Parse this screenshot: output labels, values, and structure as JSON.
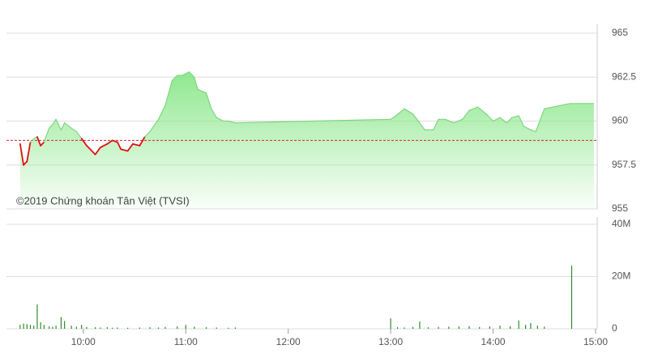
{
  "chart_data": [
    {
      "type": "line",
      "annotation": "©2019 Chứng khoán Tân Việt (TVSI)",
      "x": [
        "9:23",
        "9:25",
        "9:27",
        "9:29",
        "9:31",
        "9:33",
        "9:35",
        "9:37",
        "9:40",
        "9:42",
        "9:44",
        "9:47",
        "9:49",
        "9:53",
        "9:56",
        "9:59",
        "10:02",
        "10:07",
        "10:10",
        "10:14",
        "10:17",
        "10:20",
        "10:22",
        "10:26",
        "10:29",
        "10:33",
        "10:36",
        "10:39",
        "10:44",
        "10:48",
        "10:52",
        "10:55",
        "10:58",
        "11:02",
        "11:05",
        "11:07",
        "11:12",
        "11:15",
        "11:18",
        "11:22",
        "11:25",
        "11:29",
        "13:00",
        "13:03",
        "13:08",
        "13:13",
        "13:17",
        "13:20",
        "13:25",
        "13:28",
        "13:32",
        "13:37",
        "13:42",
        "13:46",
        "13:51",
        "13:56",
        "14:00",
        "14:04",
        "14:08",
        "14:11",
        "14:15",
        "14:18",
        "14:22",
        "14:25",
        "14:30",
        "14:45",
        "14:59"
      ],
      "values": [
        958.7,
        957.5,
        957.7,
        958.8,
        959.0,
        959.1,
        958.6,
        958.8,
        959.6,
        959.8,
        960.1,
        959.5,
        959.9,
        959.6,
        959.4,
        959.0,
        958.6,
        958.1,
        958.5,
        958.7,
        958.9,
        958.8,
        958.4,
        958.3,
        958.7,
        958.6,
        959.1,
        959.4,
        960.1,
        960.9,
        962.3,
        962.6,
        962.6,
        962.8,
        962.5,
        961.8,
        961.6,
        960.7,
        960.2,
        960.0,
        960.0,
        959.9,
        960.1,
        960.3,
        960.7,
        960.4,
        959.9,
        959.5,
        959.5,
        960.1,
        960.1,
        959.9,
        960.1,
        960.6,
        960.8,
        960.4,
        960.0,
        960.2,
        959.9,
        960.2,
        960.3,
        959.7,
        959.5,
        959.4,
        960.7,
        961.0,
        961.0
      ],
      "color": "#7fd67f",
      "below_color": "#dd1111",
      "fill_color": "#8fe88f",
      "reference": 958.9,
      "reference_color": "#dd2222",
      "xlim": [
        "9:15",
        "15:00"
      ],
      "ylim": [
        955,
        965
      ],
      "yticks": [
        955,
        957.5,
        960,
        962.5,
        965
      ],
      "grid": true
    },
    {
      "type": "bar",
      "x": [
        "9:23",
        "9:25",
        "9:27",
        "9:29",
        "9:31",
        "9:33",
        "9:35",
        "9:37",
        "9:40",
        "9:42",
        "9:44",
        "9:47",
        "9:49",
        "9:53",
        "9:56",
        "9:59",
        "10:02",
        "10:07",
        "10:10",
        "10:14",
        "10:17",
        "10:20",
        "10:26",
        "10:33",
        "10:39",
        "10:44",
        "10:48",
        "10:55",
        "11:00",
        "11:05",
        "11:12",
        "11:18",
        "11:25",
        "11:29",
        "13:00",
        "13:04",
        "13:08",
        "13:13",
        "13:17",
        "13:22",
        "13:28",
        "13:34",
        "13:40",
        "13:46",
        "13:52",
        "13:58",
        "14:04",
        "14:10",
        "14:15",
        "14:19",
        "14:22",
        "14:26",
        "14:30",
        "14:46"
      ],
      "values": [
        1500000,
        2000000,
        1800000,
        1500000,
        1200000,
        9300000,
        2500000,
        1500000,
        1000000,
        800000,
        1200000,
        4500000,
        3000000,
        1200000,
        800000,
        1500000,
        700000,
        600000,
        500000,
        600000,
        400000,
        500000,
        400000,
        500000,
        600000,
        500000,
        700000,
        900000,
        1500000,
        800000,
        600000,
        500000,
        400000,
        500000,
        4000000,
        600000,
        500000,
        700000,
        2800000,
        600000,
        700000,
        800000,
        900000,
        1000000,
        700000,
        900000,
        1200000,
        1000000,
        3200000,
        1500000,
        2200000,
        1200000,
        800000,
        24200000
      ],
      "color": "#2e8b2e",
      "xlim": [
        "9:15",
        "15:00"
      ],
      "xticks": [
        "10:00",
        "11:00",
        "12:00",
        "13:00",
        "14:00",
        "15:00"
      ],
      "ylim": [
        0,
        40000000
      ],
      "yticks": [
        0,
        {
          "value": 20000000,
          "label": "20M"
        },
        {
          "value": 40000000,
          "label": "40M"
        }
      ],
      "grid": true
    }
  ]
}
